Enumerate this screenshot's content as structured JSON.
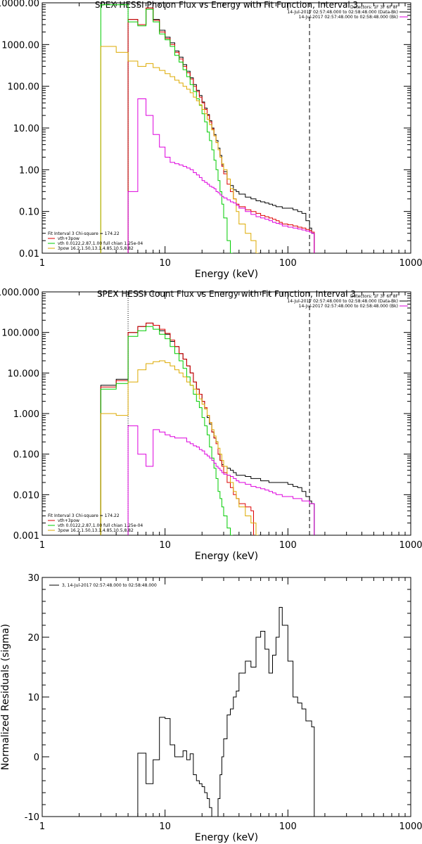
{
  "chart_data": [
    {
      "type": "line",
      "title": "SPEX HESSI Photon Flux vs Energy with Fit Function, Interval 3",
      "xlabel": "Energy (keV)",
      "ylabel": "",
      "xscale": "log",
      "yscale": "log",
      "xlim": [
        1,
        1000
      ],
      "ylim": [
        0.01,
        10000
      ],
      "xticks": [
        "1",
        "10",
        "100",
        "1000"
      ],
      "yticks": [
        "0.01",
        "0.10",
        "1.00",
        "10.00",
        "100.00",
        "1000.00",
        "10000.00"
      ],
      "legend_top": [
        "Detectors: 1F 3F 6F 8F",
        "14-Jul-2017 02:57:48.000 to 02:58:48.000 (Data-Bk)",
        "14-Jul-2017 02:57:48.000 to 02:58:48.000 (Bk)"
      ],
      "legend_bottom": [
        "Fit Interval 3   Chi-square = 174.22",
        "vth+3pow",
        "vth 0.0122,2.87,1.00  full chian 1.25e-04",
        "3pow 16.2,1.50,13.1,4.85,10.5,8.82"
      ],
      "vline_dotted": 5,
      "vline_dashed": 150,
      "series": [
        {
          "name": "Data-Bk",
          "color": "#000000",
          "x": [
            5,
            6,
            7,
            8,
            9,
            10,
            11,
            12,
            13,
            14,
            15,
            16,
            17,
            18,
            19,
            20,
            21,
            22,
            23,
            24,
            25,
            26,
            27,
            28,
            29,
            30,
            32,
            34,
            36,
            38,
            40,
            45,
            50,
            55,
            60,
            65,
            70,
            75,
            80,
            85,
            90,
            100,
            110,
            120,
            130,
            140,
            150,
            156
          ],
          "y": [
            4000,
            3000,
            7500,
            4000,
            2200,
            1500,
            1100,
            700,
            500,
            330,
            230,
            160,
            110,
            80,
            60,
            42,
            30,
            21,
            15,
            10,
            7,
            5,
            3.3,
            2.2,
            1.3,
            0.9,
            0.6,
            0.42,
            0.33,
            0.3,
            0.26,
            0.22,
            0.2,
            0.18,
            0.17,
            0.16,
            0.15,
            0.14,
            0.13,
            0.13,
            0.12,
            0.12,
            0.11,
            0.1,
            0.09,
            0.06,
            0.04,
            0.03
          ]
        },
        {
          "name": "vth+3pow",
          "color": "#dd0000",
          "x": [
            5,
            6,
            7,
            8,
            9,
            10,
            11,
            12,
            13,
            14,
            15,
            16,
            17,
            18,
            19,
            20,
            21,
            22,
            23,
            24,
            25,
            26,
            27,
            28,
            29,
            30,
            32,
            34,
            36,
            38,
            40,
            45,
            50,
            55,
            60,
            65,
            70,
            75,
            80,
            85,
            90,
            100,
            110,
            120,
            130,
            140,
            150,
            156
          ],
          "y": [
            4000,
            3000,
            7500,
            3800,
            2000,
            1400,
            1000,
            650,
            450,
            300,
            210,
            150,
            100,
            75,
            55,
            40,
            28,
            20,
            14,
            9.5,
            6.5,
            4.5,
            3,
            2,
            1.2,
            0.8,
            0.45,
            0.3,
            0.2,
            0.15,
            0.13,
            0.11,
            0.1,
            0.09,
            0.08,
            0.075,
            0.07,
            0.065,
            0.06,
            0.055,
            0.05,
            0.048,
            0.045,
            0.042,
            0.04,
            0.037,
            0.035,
            0.032
          ]
        },
        {
          "name": "vth",
          "color": "#00cc00",
          "x": [
            3,
            4,
            5,
            6,
            7,
            8,
            9,
            10,
            11,
            12,
            13,
            14,
            15,
            16,
            17,
            18,
            19,
            20,
            21,
            22,
            23,
            24,
            25,
            26,
            27,
            28,
            29,
            30,
            32,
            34
          ],
          "y": [
            9000,
            9000,
            3500,
            2800,
            7000,
            3500,
            1800,
            1300,
            900,
            550,
            380,
            250,
            170,
            110,
            75,
            50,
            35,
            22,
            14,
            8,
            5,
            3,
            1.7,
            1,
            0.55,
            0.3,
            0.15,
            0.07,
            0.02,
            0.01
          ]
        },
        {
          "name": "3pow",
          "color": "#ddaa00",
          "x": [
            3,
            4,
            5,
            6,
            7,
            8,
            9,
            10,
            11,
            12,
            13,
            14,
            15,
            16,
            17,
            18,
            19,
            20,
            21,
            22,
            23,
            24,
            25,
            26,
            27,
            28,
            29,
            30,
            32,
            34,
            36,
            38,
            40,
            45,
            50,
            55
          ],
          "y": [
            900,
            650,
            400,
            300,
            350,
            280,
            240,
            200,
            170,
            140,
            120,
            100,
            85,
            70,
            55,
            45,
            36,
            28,
            22,
            16,
            12,
            9,
            6.5,
            4.5,
            3,
            2,
            1.4,
            1,
            0.6,
            0.35,
            0.2,
            0.1,
            0.05,
            0.03,
            0.02,
            0.01
          ]
        },
        {
          "name": "Bk",
          "color": "#dd00dd",
          "x": [
            5,
            6,
            7,
            8,
            9,
            10,
            11,
            12,
            13,
            14,
            15,
            16,
            17,
            18,
            19,
            20,
            21,
            22,
            23,
            24,
            25,
            26,
            27,
            28,
            29,
            30,
            32,
            34,
            36,
            38,
            40,
            45,
            50,
            55,
            60,
            65,
            70,
            75,
            80,
            85,
            90,
            100,
            110,
            120,
            130,
            140,
            150,
            156
          ],
          "y": [
            0.3,
            50,
            20,
            7,
            3.5,
            2,
            1.5,
            1.4,
            1.3,
            1.2,
            1.1,
            1,
            0.85,
            0.75,
            0.65,
            0.55,
            0.5,
            0.45,
            0.4,
            0.38,
            0.35,
            0.3,
            0.28,
            0.25,
            0.23,
            0.21,
            0.19,
            0.17,
            0.16,
            0.14,
            0.12,
            0.1,
            0.085,
            0.075,
            0.07,
            0.065,
            0.06,
            0.055,
            0.052,
            0.05,
            0.045,
            0.042,
            0.04,
            0.038,
            0.036,
            0.034,
            0.032,
            0.03
          ]
        }
      ]
    },
    {
      "type": "line",
      "title": "SPEX HESSI Count Flux vs Energy with Fit Function, Interval 3",
      "xlabel": "Energy (keV)",
      "ylabel": "",
      "xscale": "log",
      "yscale": "log",
      "xlim": [
        1,
        1000
      ],
      "ylim": [
        0.001,
        1000
      ],
      "xticks": [
        "1",
        "10",
        "100",
        "1000"
      ],
      "yticks": [
        "0.001",
        "0.010",
        "0.100",
        "1.000",
        "10.000",
        "100.000",
        "1000.000"
      ],
      "legend_top": [
        "Detectors: 1F 3F 6F 8F",
        "14-Jul-2017 02:57:48.000 to 02:58:48.000 (Data-Bk)",
        "14-Jul-2017 02:57:48.000 to 02:58:48.000 (Bk)"
      ],
      "legend_bottom": [
        "Fit Interval 3   Chi-square = 174.22",
        "vth+3pow",
        "vth 0.0122,2.87,1.00  full chian 1.25e-04",
        "3pow 16.2,1.50,13.1,4.85,10.5,8.82"
      ],
      "vline_dotted": 5,
      "vline_dashed": 150,
      "series": [
        {
          "name": "Data-Bk",
          "color": "#000000",
          "x": [
            3,
            4,
            5,
            6,
            7,
            8,
            9,
            10,
            11,
            12,
            13,
            14,
            15,
            16,
            17,
            18,
            19,
            20,
            21,
            22,
            23,
            24,
            25,
            26,
            27,
            28,
            29,
            30,
            32,
            34,
            36,
            38,
            40,
            45,
            50,
            55,
            60,
            65,
            70,
            75,
            80,
            85,
            90,
            100,
            110,
            120,
            130,
            140,
            150,
            156
          ],
          "y": [
            5,
            7,
            100,
            140,
            170,
            150,
            110,
            90,
            60,
            45,
            30,
            22,
            15,
            10,
            6,
            4,
            3,
            2,
            1.3,
            0.8,
            0.55,
            0.35,
            0.25,
            0.2,
            0.1,
            0.07,
            0.055,
            0.05,
            0.045,
            0.04,
            0.035,
            0.03,
            0.03,
            0.028,
            0.025,
            0.025,
            0.022,
            0.022,
            0.02,
            0.02,
            0.02,
            0.02,
            0.02,
            0.018,
            0.016,
            0.015,
            0.012,
            0.009,
            0.007,
            0.006
          ]
        },
        {
          "name": "vth+3pow",
          "color": "#dd0000",
          "x": [
            3,
            4,
            5,
            6,
            7,
            8,
            9,
            10,
            11,
            12,
            13,
            14,
            15,
            16,
            17,
            18,
            19,
            20,
            21,
            22,
            23,
            24,
            25,
            26,
            27,
            28,
            29,
            30,
            32,
            34,
            36,
            38,
            40,
            45,
            50
          ],
          "y": [
            4.5,
            6.5,
            100,
            140,
            170,
            150,
            120,
            95,
            65,
            45,
            30,
            22,
            15,
            10,
            6,
            4,
            3,
            2,
            1.4,
            0.9,
            0.6,
            0.35,
            0.25,
            0.18,
            0.1,
            0.07,
            0.05,
            0.035,
            0.02,
            0.015,
            0.01,
            0.008,
            0.006,
            0.005,
            0.004
          ]
        },
        {
          "name": "vth",
          "color": "#00cc00",
          "x": [
            3,
            4,
            5,
            6,
            7,
            8,
            9,
            10,
            11,
            12,
            13,
            14,
            15,
            16,
            17,
            18,
            19,
            20,
            21,
            22,
            23,
            24,
            25,
            26,
            27,
            28,
            29,
            30,
            32,
            34
          ],
          "y": [
            4,
            5.5,
            80,
            110,
            140,
            120,
            90,
            70,
            45,
            30,
            20,
            13,
            8,
            5,
            3,
            2,
            1.4,
            0.8,
            0.5,
            0.3,
            0.15,
            0.08,
            0.045,
            0.025,
            0.012,
            0.008,
            0.005,
            0.003,
            0.0015,
            0.001
          ]
        },
        {
          "name": "3pow",
          "color": "#ddaa00",
          "x": [
            3,
            4,
            5,
            6,
            7,
            8,
            9,
            10,
            11,
            12,
            13,
            14,
            15,
            16,
            17,
            18,
            19,
            20,
            21,
            22,
            23,
            24,
            25,
            26,
            27,
            28,
            29,
            30,
            32,
            34,
            36,
            38,
            40,
            45,
            50,
            55
          ],
          "y": [
            1,
            0.9,
            6,
            12,
            17,
            19,
            20,
            18,
            15,
            12,
            10,
            8,
            6,
            5,
            4,
            3,
            2.3,
            1.7,
            1.3,
            0.9,
            0.6,
            0.4,
            0.28,
            0.2,
            0.14,
            0.1,
            0.07,
            0.05,
            0.03,
            0.02,
            0.012,
            0.008,
            0.005,
            0.003,
            0.002,
            0.001
          ]
        },
        {
          "name": "Bk",
          "color": "#dd00dd",
          "x": [
            5,
            6,
            7,
            8,
            9,
            10,
            11,
            12,
            13,
            14,
            15,
            16,
            17,
            18,
            19,
            20,
            21,
            22,
            23,
            24,
            25,
            26,
            27,
            28,
            29,
            30,
            32,
            34,
            36,
            38,
            40,
            45,
            50,
            55,
            60,
            65,
            70,
            75,
            80,
            85,
            90,
            100,
            110,
            120,
            130,
            140,
            150,
            156
          ],
          "y": [
            0.5,
            0.1,
            0.05,
            0.4,
            0.35,
            0.3,
            0.27,
            0.25,
            0.25,
            0.25,
            0.2,
            0.18,
            0.16,
            0.15,
            0.13,
            0.12,
            0.1,
            0.09,
            0.08,
            0.07,
            0.06,
            0.05,
            0.045,
            0.04,
            0.035,
            0.032,
            0.03,
            0.028,
            0.025,
            0.022,
            0.02,
            0.018,
            0.016,
            0.015,
            0.014,
            0.013,
            0.012,
            0.011,
            0.01,
            0.01,
            0.009,
            0.009,
            0.008,
            0.008,
            0.007,
            0.007,
            0.006,
            0.006
          ]
        }
      ]
    },
    {
      "type": "line",
      "title": "",
      "xlabel": "Energy (keV)",
      "ylabel": "Normalized Residuals (sigma)",
      "xscale": "log",
      "yscale": "linear",
      "xlim": [
        1,
        1000
      ],
      "ylim": [
        -10,
        30
      ],
      "xticks": [
        "1",
        "10",
        "100",
        "1000"
      ],
      "yticks": [
        "-10",
        "0",
        "10",
        "20",
        "30"
      ],
      "legend_top": [
        "3, 14-Jul-2017 02:57:48.000 to 02:58:48.000"
      ],
      "legend_bottom": [],
      "series": [
        {
          "name": "3, 14-Jul-2017 02:57:48.000 to 02:58:48.000",
          "color": "#000000",
          "x": [
            5,
            6,
            7,
            8,
            9,
            10,
            11,
            12,
            13,
            14,
            15,
            16,
            17,
            18,
            19,
            20,
            21,
            22,
            23,
            24,
            25,
            26,
            27,
            28,
            29,
            30,
            32,
            34,
            36,
            38,
            40,
            45,
            50,
            55,
            60,
            65,
            70,
            75,
            80,
            85,
            90,
            100,
            110,
            120,
            130,
            140,
            150,
            156
          ],
          "y": [
            -10,
            0.6,
            -4.5,
            -0.5,
            6.6,
            6.4,
            2,
            0,
            0,
            1,
            -0.5,
            0.5,
            -3,
            -4,
            -4.5,
            -5,
            -6,
            -7,
            -8.5,
            -10.5,
            -10.5,
            -10,
            -7,
            -3,
            0,
            3,
            7,
            8,
            10,
            11,
            14,
            16,
            15,
            20,
            21,
            18,
            14,
            17,
            20,
            25,
            22,
            16,
            10,
            9,
            8,
            6,
            6,
            5
          ]
        }
      ]
    }
  ]
}
